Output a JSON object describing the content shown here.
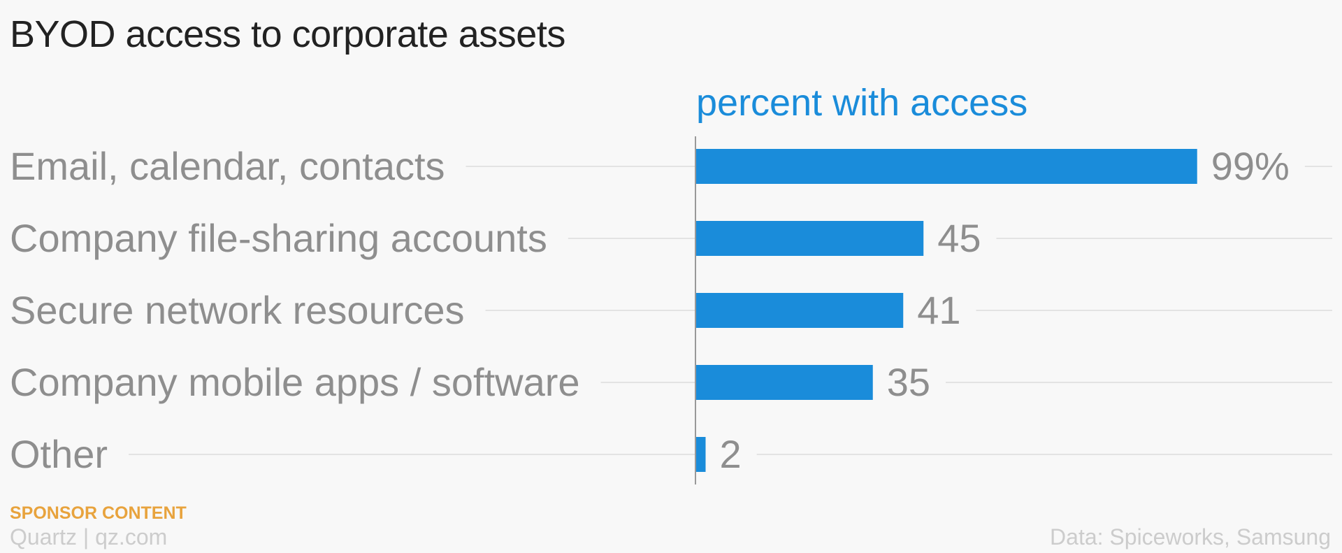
{
  "header": {
    "title": "BYOD access to corporate assets",
    "subtitle": "percent with access"
  },
  "footer": {
    "sponsor_label": "SPONSOR CONTENT",
    "credit": "Quartz | qz.com",
    "source": "Data: Spiceworks, Samsung"
  },
  "colors": {
    "bar": "#1a8cda",
    "subtitle": "#1a8cda",
    "sponsor": "#e8a33d",
    "category_label": "#8e8e8e",
    "value_label": "#8e8e8e",
    "gridline": "#e3e3e3",
    "baseline": "#999999"
  },
  "chart_data": {
    "type": "bar",
    "orientation": "horizontal",
    "title": "BYOD access to corporate assets",
    "subtitle": "percent with access",
    "categories": [
      "Email, calendar, contacts",
      "Company file-sharing accounts",
      "Secure network resources",
      "Company mobile apps / software",
      "Other"
    ],
    "values": [
      99,
      45,
      41,
      35,
      2
    ],
    "value_labels": [
      "99%",
      "45",
      "41",
      "35",
      "2"
    ],
    "xlim": [
      0,
      100
    ],
    "grid": true,
    "legend": "none"
  }
}
